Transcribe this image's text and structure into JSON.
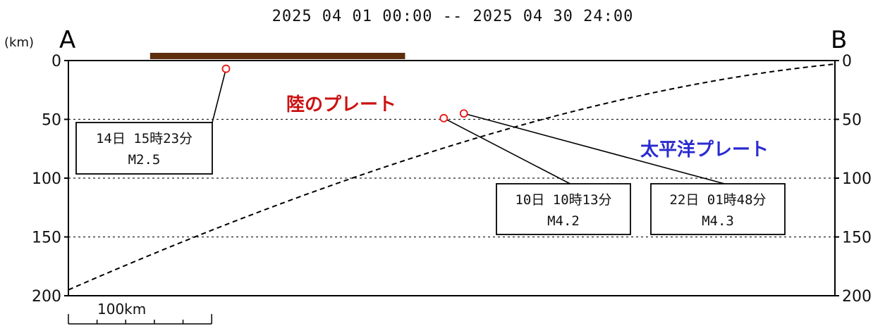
{
  "title": "2025 04 01 00:00 -- 2025 04 30 24:00",
  "colors": {
    "quake": "#ee1111",
    "land_bar": "#5c2e0e",
    "land_label": "#cc1111",
    "pacific_label": "#2a2ad0"
  },
  "labels": {
    "unit": "(km)",
    "left_end": "A",
    "right_end": "B",
    "land_plate": "陸のプレート",
    "pacific_plate": "太平洋プレート"
  },
  "scale_bar": {
    "label": "100km",
    "length_km": 100
  },
  "callouts": [
    {
      "date": "14日 15時23分",
      "magnitude": "M2.5",
      "x_km": 110,
      "depth_km": 7
    },
    {
      "date": "10日 10時13分",
      "magnitude": "M4.2",
      "x_km": 262,
      "depth_km": 49
    },
    {
      "date": "22日 01時48分",
      "magnitude": "M4.3",
      "x_km": 276,
      "depth_km": 45
    }
  ],
  "chart_data": {
    "type": "scatter",
    "title": "2025 04 01 00:00 -- 2025 04 30 24:00",
    "ylabel": "(km)",
    "xlim": [
      0,
      535
    ],
    "ylim": [
      200,
      0
    ],
    "y_ticks": [
      0,
      50,
      100,
      150,
      200
    ],
    "grid_depths": [
      50,
      100,
      150
    ],
    "land_segment_km": [
      57,
      235
    ],
    "slab_line": {
      "x": [
        0,
        535
      ],
      "depth": [
        195,
        3
      ],
      "curvature": "concave"
    },
    "earthquakes": {
      "x": [],
      "depth": []
    }
  }
}
